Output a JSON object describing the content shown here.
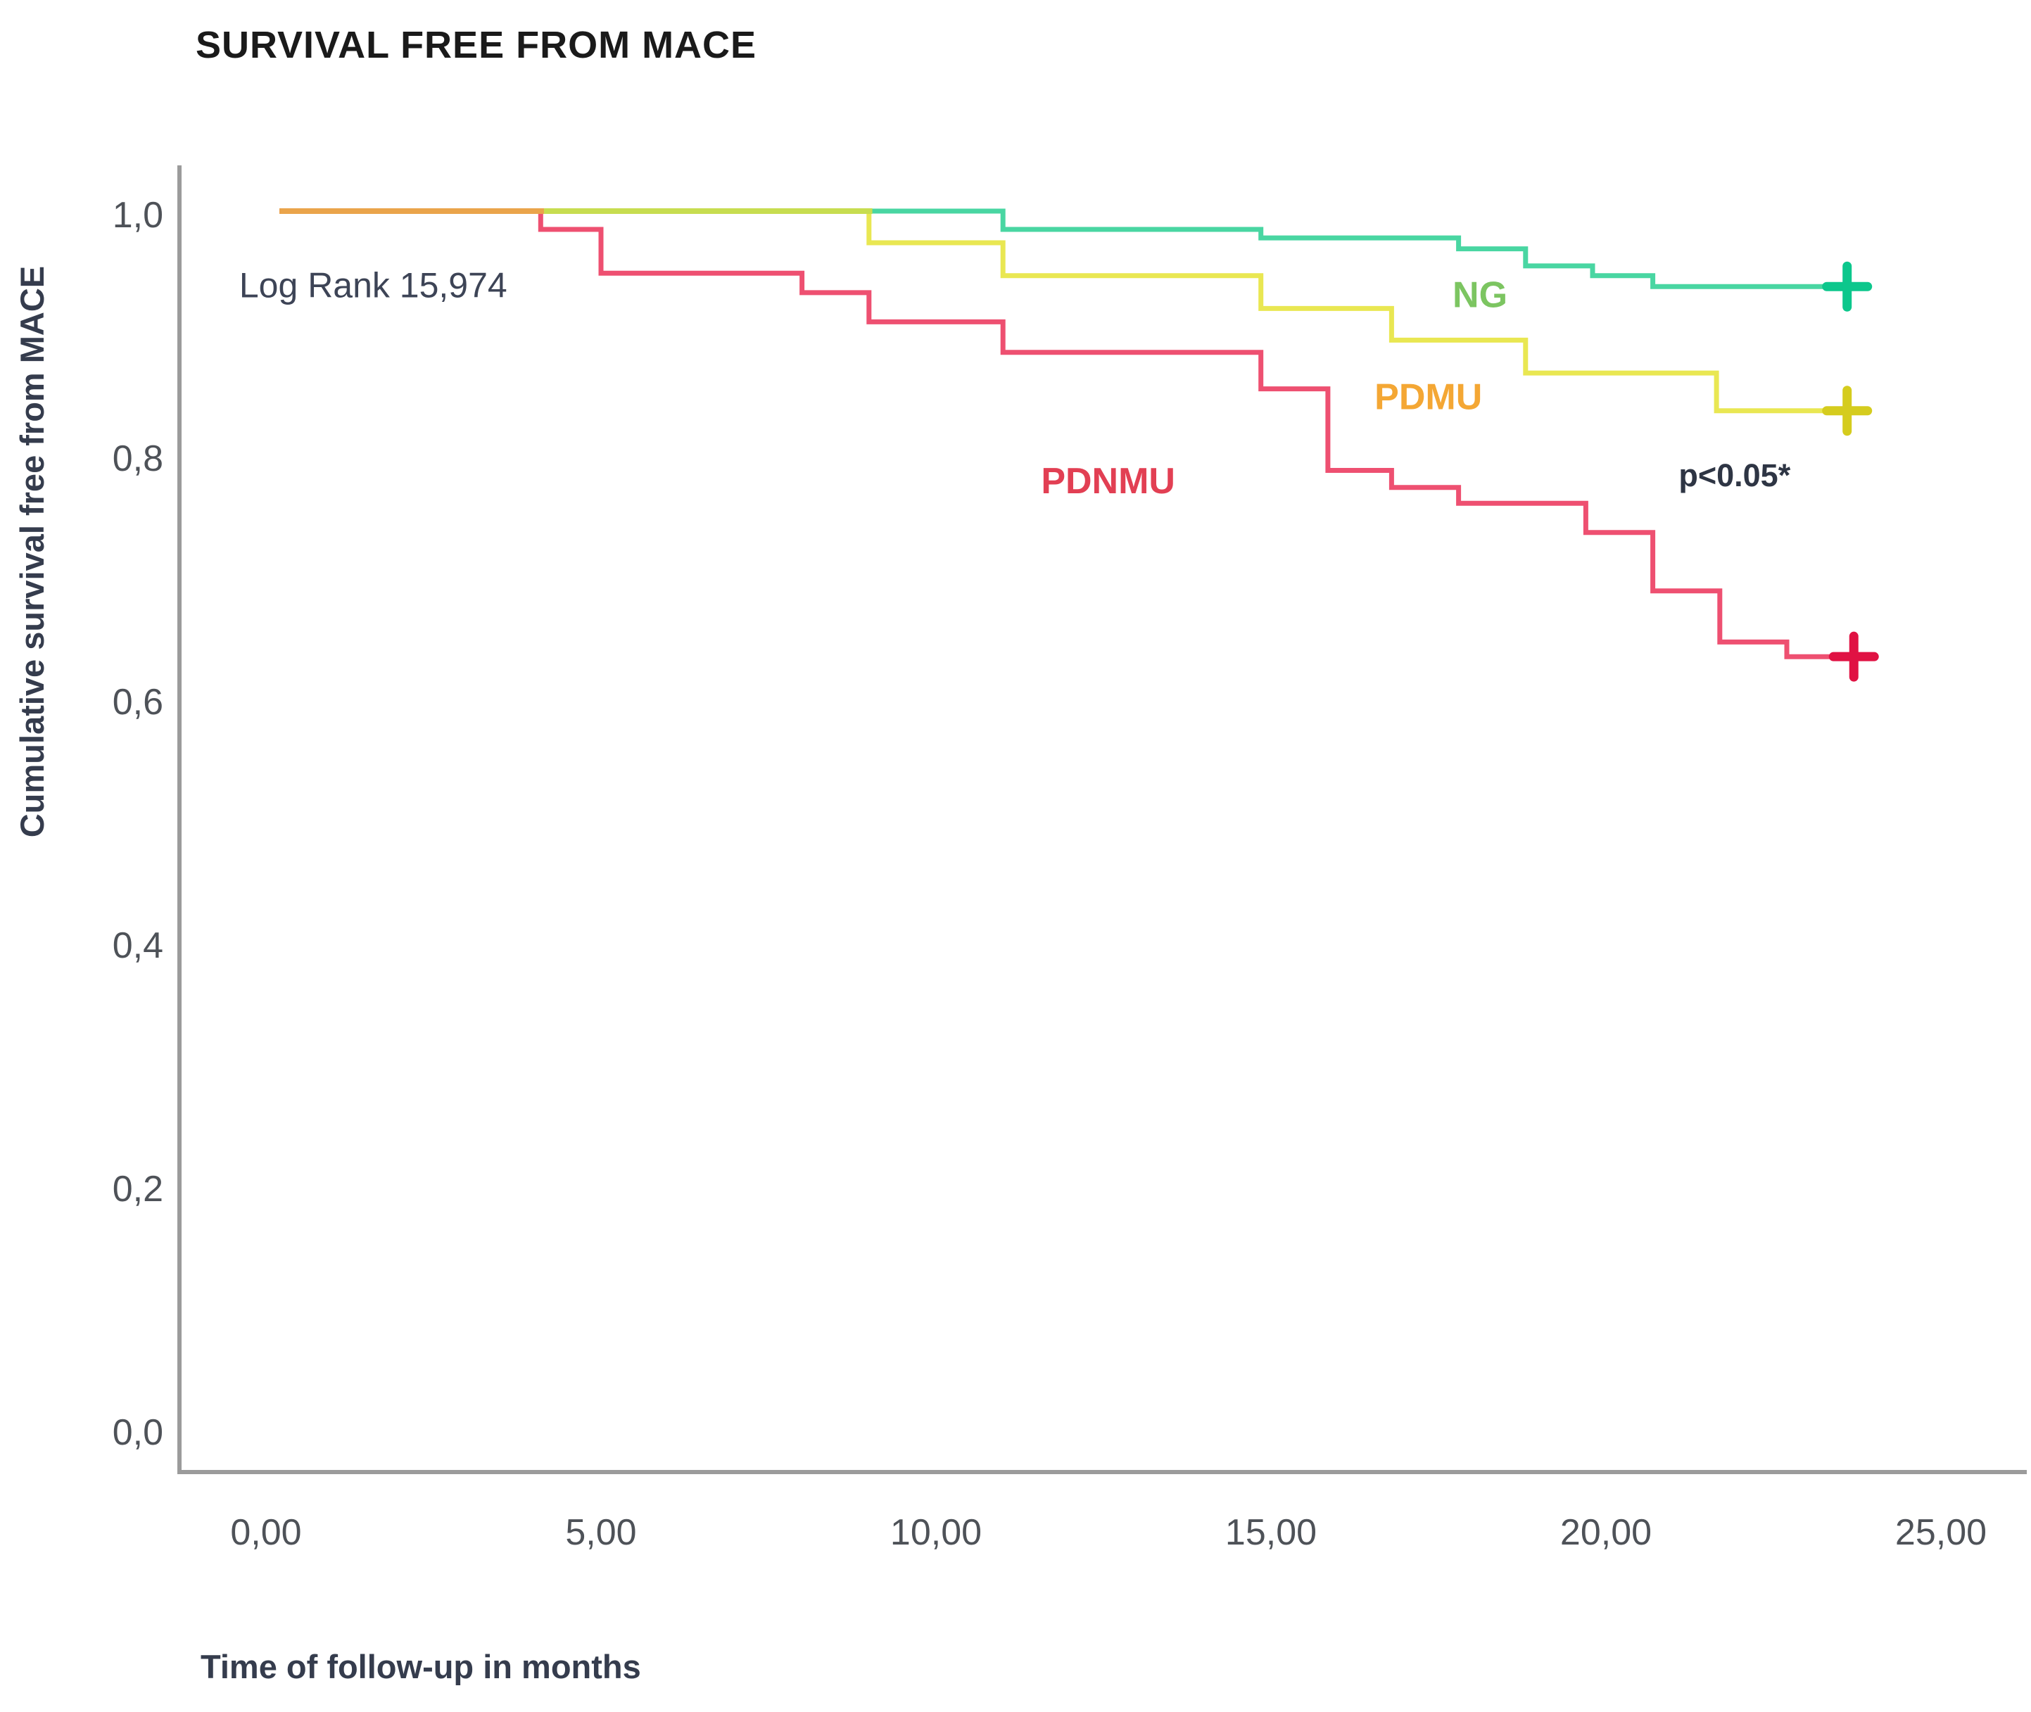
{
  "title": "SURVIVAL FREE FROM MACE",
  "chart_data": {
    "type": "line",
    "subtype": "kaplan-meier-step",
    "title": "SURVIVAL FREE FROM MACE",
    "xlabel": "Time of follow-up in months",
    "ylabel": "Cumulative survival free from MACE",
    "xlim": [
      0,
      25
    ],
    "ylim": [
      0.0,
      1.05
    ],
    "grid": false,
    "legend_position": "inline-labels",
    "axis_color": "#9b9b9b",
    "tick_text_color": "#4e5258",
    "x_ticks": [
      {
        "value": 0,
        "label": "0,00"
      },
      {
        "value": 5,
        "label": "5,00"
      },
      {
        "value": 10,
        "label": "10,00"
      },
      {
        "value": 15,
        "label": "15,00"
      },
      {
        "value": 20,
        "label": "20,00"
      },
      {
        "value": 25,
        "label": "25,00"
      }
    ],
    "y_ticks": [
      {
        "value": 1.0,
        "label": "1,0"
      },
      {
        "value": 0.8,
        "label": "0,8"
      },
      {
        "value": 0.6,
        "label": "0,6"
      },
      {
        "value": 0.4,
        "label": "0,4"
      },
      {
        "value": 0.2,
        "label": "0,2"
      },
      {
        "value": 0.0,
        "label": "0,0"
      }
    ],
    "series": [
      {
        "name": "NG",
        "color": "#49d6a2",
        "censor_color": "#0cc78c",
        "points": [
          [
            0.2,
            1.0
          ],
          [
            11.0,
            1.0
          ],
          [
            11.0,
            0.985
          ],
          [
            14.85,
            0.985
          ],
          [
            14.85,
            0.978
          ],
          [
            17.8,
            0.978
          ],
          [
            17.8,
            0.969
          ],
          [
            18.8,
            0.969
          ],
          [
            18.8,
            0.955
          ],
          [
            19.8,
            0.955
          ],
          [
            19.8,
            0.947
          ],
          [
            20.7,
            0.947
          ],
          [
            20.7,
            0.938
          ],
          [
            23.9,
            0.938
          ]
        ],
        "censor_marks": [
          {
            "x": 23.6,
            "y": 0.938
          }
        ]
      },
      {
        "name": "PDMU",
        "color": "#e9e752",
        "censor_color": "#d5cc1e",
        "points": [
          [
            0.2,
            1.0
          ],
          [
            9.0,
            1.0
          ],
          [
            9.0,
            0.974
          ],
          [
            11.0,
            0.974
          ],
          [
            11.0,
            0.947
          ],
          [
            14.85,
            0.947
          ],
          [
            14.85,
            0.92
          ],
          [
            16.8,
            0.92
          ],
          [
            16.8,
            0.894
          ],
          [
            18.8,
            0.894
          ],
          [
            18.8,
            0.867
          ],
          [
            21.65,
            0.867
          ],
          [
            21.65,
            0.836
          ],
          [
            23.9,
            0.836
          ]
        ],
        "censor_marks": [
          {
            "x": 23.6,
            "y": 0.836
          }
        ]
      },
      {
        "name": "PDNMU",
        "color": "#ee5071",
        "censor_color": "#e01243",
        "points": [
          [
            0.2,
            1.0
          ],
          [
            4.1,
            1.0
          ],
          [
            4.1,
            0.985
          ],
          [
            5.0,
            0.985
          ],
          [
            5.0,
            0.949
          ],
          [
            8.0,
            0.949
          ],
          [
            8.0,
            0.933
          ],
          [
            9.0,
            0.933
          ],
          [
            9.0,
            0.909
          ],
          [
            11.0,
            0.909
          ],
          [
            11.0,
            0.884
          ],
          [
            14.85,
            0.884
          ],
          [
            14.85,
            0.854
          ],
          [
            15.85,
            0.854
          ],
          [
            15.85,
            0.787
          ],
          [
            16.8,
            0.787
          ],
          [
            16.8,
            0.773
          ],
          [
            17.8,
            0.773
          ],
          [
            17.8,
            0.76
          ],
          [
            19.7,
            0.76
          ],
          [
            19.7,
            0.736
          ],
          [
            20.7,
            0.736
          ],
          [
            20.7,
            0.688
          ],
          [
            21.7,
            0.688
          ],
          [
            21.7,
            0.646
          ],
          [
            22.7,
            0.646
          ],
          [
            22.7,
            0.634
          ],
          [
            23.95,
            0.634
          ]
        ],
        "censor_marks": [
          {
            "x": 23.7,
            "y": 0.634
          }
        ]
      }
    ],
    "overlay_segments": [
      {
        "name": "start-overlap-orange",
        "x1": 0.2,
        "x2": 4.15,
        "y": 1.0,
        "color": "#eaa44b"
      },
      {
        "name": "start-overlap-chartreuse",
        "x1": 4.15,
        "x2": 9.05,
        "y": 1.0,
        "color": "#c7dd50"
      }
    ],
    "annotations": [
      {
        "id": "log-rank",
        "text": "Log Rank 15,974",
        "x": 1.6,
        "y": 0.939,
        "color": "#3d4456",
        "size": 50,
        "weight": "normal"
      },
      {
        "id": "label-ng",
        "text": "NG",
        "x": 18.12,
        "y": 0.931,
        "color": "#7cc561",
        "size": 52,
        "weight": "bold"
      },
      {
        "id": "label-pdmu",
        "text": "PDMU",
        "x": 17.35,
        "y": 0.847,
        "color": "#f4a734",
        "size": 52,
        "weight": "bold"
      },
      {
        "id": "label-pdnmu",
        "text": "PDNMU",
        "x": 12.57,
        "y": 0.778,
        "color": "#e23f53",
        "size": 52,
        "weight": "bold"
      },
      {
        "id": "p-value",
        "text": "p<0.05*",
        "x": 21.92,
        "y": 0.783,
        "color": "#2e3544",
        "size": 45,
        "weight": "600"
      }
    ]
  }
}
